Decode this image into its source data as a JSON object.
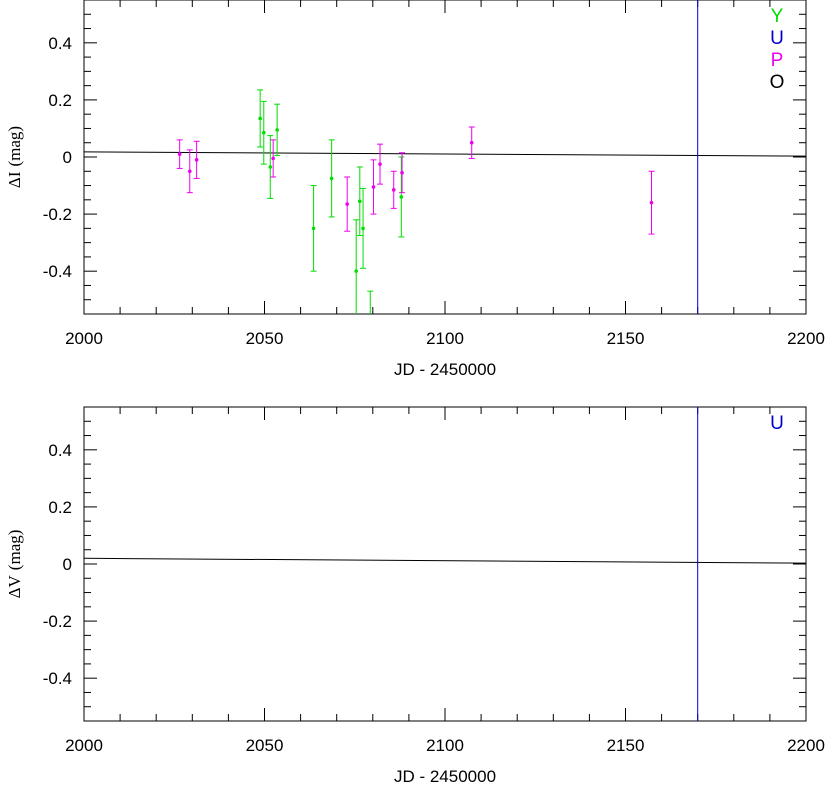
{
  "chart_data": [
    {
      "type": "scatter",
      "xlabel": "JD - 2450000",
      "ylabel_symbol": "ΔI",
      "ylabel_unit": "(mag)",
      "xlim": [
        2000,
        2200
      ],
      "ylim": [
        -0.55,
        0.55
      ],
      "x_ticks": [
        2000,
        2050,
        2100,
        2150,
        2200
      ],
      "x_tick_labels": [
        "2000",
        "2050",
        "2100",
        "2150",
        "2200"
      ],
      "y_ticks": [
        0.4,
        0.2,
        0,
        -0.2,
        -0.4
      ],
      "y_tick_labels": [
        "0.4",
        "0.2",
        "0",
        "-0.2",
        "-0.4"
      ],
      "legend": [
        {
          "label": "Y",
          "color": "#00dd00"
        },
        {
          "label": "U",
          "color": "#0000cc"
        },
        {
          "label": "P",
          "color": "#ee00ee"
        },
        {
          "label": "O",
          "color": "#000000"
        }
      ],
      "model_line": {
        "x": [
          2000,
          2200
        ],
        "y": [
          0.018,
          0.003
        ],
        "color": "#000000"
      },
      "vertical_line": {
        "x": 2170,
        "color": "#0000cc"
      },
      "series": [
        {
          "name": "Y",
          "color": "#00dd00",
          "points": [
            {
              "x": 2048.8,
              "y": 0.135,
              "err": 0.1
            },
            {
              "x": 2049.8,
              "y": 0.085,
              "err": 0.11
            },
            {
              "x": 2051.6,
              "y": -0.035,
              "err": 0.11
            },
            {
              "x": 2053.5,
              "y": 0.095,
              "err": 0.09
            },
            {
              "x": 2063.6,
              "y": -0.25,
              "err": 0.15
            },
            {
              "x": 2068.6,
              "y": -0.075,
              "err": 0.135
            },
            {
              "x": 2075.4,
              "y": -0.4,
              "err": 0.18
            },
            {
              "x": 2076.4,
              "y": -0.155,
              "err": 0.12
            },
            {
              "x": 2077.3,
              "y": -0.25,
              "err": 0.14
            },
            {
              "x": 2079.3,
              "y": -0.6,
              "err": 0.13
            },
            {
              "x": 2087.9,
              "y": -0.14,
              "err": 0.14
            }
          ]
        },
        {
          "name": "P",
          "color": "#ee00ee",
          "points": [
            {
              "x": 2026.5,
              "y": 0.01,
              "err": 0.05
            },
            {
              "x": 2029.3,
              "y": -0.05,
              "err": 0.075
            },
            {
              "x": 2031.2,
              "y": -0.01,
              "err": 0.065
            },
            {
              "x": 2052.4,
              "y": -0.005,
              "err": 0.065
            },
            {
              "x": 2072.9,
              "y": -0.165,
              "err": 0.095
            },
            {
              "x": 2080.2,
              "y": -0.105,
              "err": 0.095
            },
            {
              "x": 2082.0,
              "y": -0.025,
              "err": 0.07
            },
            {
              "x": 2085.8,
              "y": -0.115,
              "err": 0.065
            },
            {
              "x": 2088.1,
              "y": -0.055,
              "err": 0.07
            },
            {
              "x": 2107.4,
              "y": 0.05,
              "err": 0.055
            },
            {
              "x": 2157.2,
              "y": -0.16,
              "err": 0.11
            }
          ]
        }
      ]
    },
    {
      "type": "scatter",
      "xlabel": "JD - 2450000",
      "ylabel_symbol": "ΔV",
      "ylabel_unit": "(mag)",
      "xlim": [
        2000,
        2200
      ],
      "ylim": [
        -0.55,
        0.55
      ],
      "x_ticks": [
        2000,
        2050,
        2100,
        2150,
        2200
      ],
      "x_tick_labels": [
        "2000",
        "2050",
        "2100",
        "2150",
        "2200"
      ],
      "y_ticks": [
        0.4,
        0.2,
        0,
        -0.2,
        -0.4
      ],
      "y_tick_labels": [
        "0.4",
        "0.2",
        "0",
        "-0.2",
        "-0.4"
      ],
      "legend": [
        {
          "label": "U",
          "color": "#0000cc"
        }
      ],
      "model_line": {
        "x": [
          2000,
          2200
        ],
        "y": [
          0.02,
          0.003
        ],
        "color": "#000000"
      },
      "vertical_line": {
        "x": 2170,
        "color": "#0000cc"
      },
      "series": []
    }
  ]
}
